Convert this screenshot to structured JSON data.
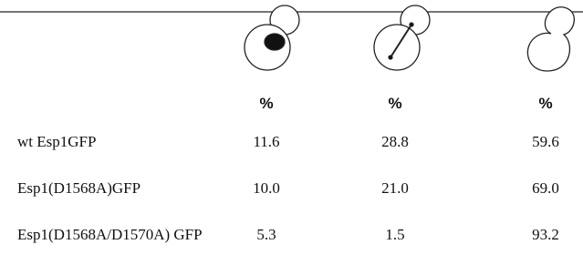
{
  "table": {
    "columns": [
      "%",
      "%",
      "%"
    ],
    "rows": [
      {
        "label": "wt Esp1GFP",
        "values": [
          "11.6",
          "28.8",
          "59.6"
        ]
      },
      {
        "label": "Esp1(D1568A)GFP",
        "values": [
          "10.0",
          "21.0",
          "69.0"
        ]
      },
      {
        "label": "Esp1(D1568A/D1570A) GFP",
        "values": [
          "5.3",
          "1.5",
          "93.2"
        ]
      }
    ]
  }
}
